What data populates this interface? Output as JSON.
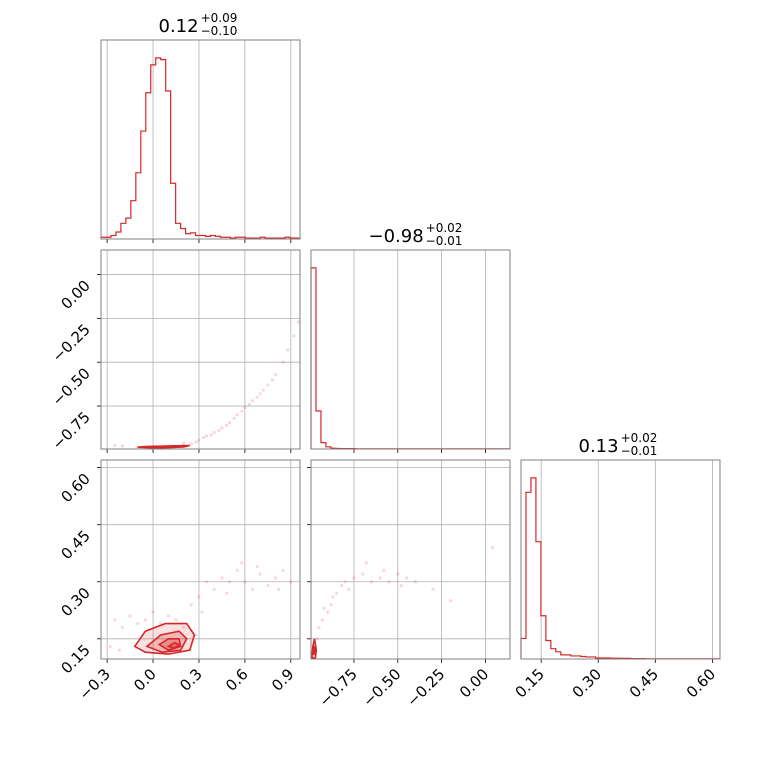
{
  "chart_data": {
    "type": "corner",
    "color": "#d62728",
    "params": [
      {
        "id": "p1",
        "range": [
          -0.34,
          0.96
        ],
        "ticks": [
          -0.3,
          0.0,
          0.3,
          0.6,
          0.9
        ],
        "tick_labels": [
          "−0.3",
          "0.0",
          "0.3",
          "0.6",
          "0.9"
        ],
        "title": {
          "base": "0.12",
          "plus": "+0.09",
          "minus": "−0.10"
        },
        "hist": [
          0.01,
          0.01,
          0.02,
          0.04,
          0.09,
          0.12,
          0.22,
          0.38,
          0.62,
          0.84,
          1.0,
          1.04,
          1.03,
          0.85,
          0.32,
          0.09,
          0.06,
          0.03,
          0.035,
          0.02,
          0.02,
          0.015,
          0.02,
          0.015,
          0.01,
          0.01,
          0.005,
          0.01,
          0.01,
          0.005,
          0.005,
          0.005,
          0.01,
          0.005,
          0.005,
          0.005,
          0.005,
          0.01,
          0.005,
          0.005
        ]
      },
      {
        "id": "p2",
        "range": [
          -0.995,
          0.14
        ],
        "ticks": [
          -0.75,
          -0.5,
          -0.25,
          0.0
        ],
        "tick_labels": [
          "−0.75",
          "−0.50",
          "−0.25",
          "0.00"
        ],
        "title": {
          "base": "−0.98",
          "plus": "+0.02",
          "minus": "−0.01"
        },
        "hist": [
          1.0,
          0.21,
          0.035,
          0.012,
          0.004,
          0.003,
          0.002,
          0.002,
          0.002,
          0.001,
          0.001,
          0.001,
          0.001,
          0.001,
          0.001,
          0.001,
          0.001,
          0.001,
          0.001,
          0.001,
          0.001,
          0.001,
          0.001,
          0.001,
          0.001,
          0.001,
          0.001,
          0.001,
          0.001,
          0.001,
          0.001,
          0.001,
          0.001,
          0.001,
          0.001,
          0.001,
          0.001,
          0.001,
          0.001,
          0.001
        ]
      },
      {
        "id": "p3",
        "range": [
          0.097,
          0.62
        ],
        "ticks": [
          0.15,
          0.3,
          0.45,
          0.6
        ],
        "tick_labels": [
          "0.15",
          "0.30",
          "0.45",
          "0.60"
        ],
        "title": {
          "base": "0.13",
          "plus": "+0.02",
          "minus": "−0.01"
        },
        "hist": [
          0.1,
          0.81,
          0.88,
          0.57,
          0.21,
          0.09,
          0.05,
          0.035,
          0.02,
          0.02,
          0.015,
          0.015,
          0.012,
          0.01,
          0.01,
          0.005,
          0.005,
          0.005,
          0.004,
          0.004,
          0.003,
          0.003,
          0.002,
          0.002,
          0.002,
          0.001,
          0.001,
          0.001,
          0.001,
          0.001,
          0.001,
          0.001,
          0.001,
          0.001,
          0.001,
          0.001,
          0.001,
          0.001,
          0.001,
          0.001
        ]
      }
    ],
    "pairs": [
      {
        "x": "p1",
        "y": "p2",
        "samples": [
          [
            -0.25,
            -0.975
          ],
          [
            -0.2,
            -0.978
          ],
          [
            -0.1,
            -0.984
          ],
          [
            0.0,
            -0.982
          ],
          [
            0.1,
            -0.98
          ],
          [
            0.2,
            -0.975
          ],
          [
            0.25,
            -0.965
          ],
          [
            0.3,
            -0.945
          ],
          [
            0.35,
            -0.92
          ],
          [
            0.4,
            -0.9
          ],
          [
            0.45,
            -0.875
          ],
          [
            0.5,
            -0.845
          ],
          [
            0.55,
            -0.8
          ],
          [
            0.6,
            -0.76
          ],
          [
            0.65,
            -0.72
          ],
          [
            0.7,
            -0.68
          ],
          [
            0.75,
            -0.63
          ],
          [
            0.8,
            -0.57
          ],
          [
            0.85,
            -0.5
          ],
          [
            0.88,
            -0.43
          ],
          [
            0.92,
            -0.35
          ],
          [
            0.95,
            -0.27
          ],
          [
            0.2,
            -0.96
          ],
          [
            0.28,
            -0.955
          ],
          [
            0.33,
            -0.93
          ],
          [
            0.38,
            -0.915
          ],
          [
            0.43,
            -0.89
          ],
          [
            0.48,
            -0.86
          ],
          [
            0.53,
            -0.82
          ],
          [
            0.58,
            -0.78
          ],
          [
            0.63,
            -0.74
          ],
          [
            0.68,
            -0.7
          ],
          [
            0.72,
            -0.66
          ],
          [
            0.78,
            -0.6
          ]
        ],
        "contours": [
          [
            [
              -0.1,
              -0.985
            ],
            [
              0.0,
              -0.988
            ],
            [
              0.1,
              -0.987
            ],
            [
              0.2,
              -0.983
            ],
            [
              0.24,
              -0.975
            ],
            [
              0.15,
              -0.977
            ],
            [
              0.05,
              -0.979
            ],
            [
              -0.05,
              -0.981
            ],
            [
              -0.1,
              -0.985
            ]
          ],
          [
            [
              -0.04,
              -0.984
            ],
            [
              0.05,
              -0.986
            ],
            [
              0.15,
              -0.985
            ],
            [
              0.19,
              -0.981
            ],
            [
              0.1,
              -0.981
            ],
            [
              0.0,
              -0.982
            ],
            [
              -0.04,
              -0.984
            ]
          ]
        ]
      },
      {
        "x": "p1",
        "y": "p3",
        "samples": [
          [
            -0.25,
            0.2
          ],
          [
            -0.2,
            0.18
          ],
          [
            -0.15,
            0.21
          ],
          [
            -0.1,
            0.19
          ],
          [
            -0.05,
            0.2
          ],
          [
            0.0,
            0.22
          ],
          [
            0.05,
            0.19
          ],
          [
            0.1,
            0.21
          ],
          [
            0.15,
            0.2
          ],
          [
            0.2,
            0.18
          ],
          [
            0.25,
            0.24
          ],
          [
            0.3,
            0.26
          ],
          [
            0.35,
            0.3
          ],
          [
            0.4,
            0.28
          ],
          [
            0.45,
            0.31
          ],
          [
            0.5,
            0.3
          ],
          [
            0.55,
            0.33
          ],
          [
            0.6,
            0.3
          ],
          [
            0.65,
            0.28
          ],
          [
            0.7,
            0.32
          ],
          [
            0.75,
            0.29
          ],
          [
            0.8,
            0.31
          ],
          [
            0.85,
            0.33
          ],
          [
            0.9,
            0.3
          ],
          [
            -0.28,
            0.13
          ],
          [
            -0.22,
            0.12
          ],
          [
            0.28,
            0.16
          ],
          [
            0.32,
            0.22
          ],
          [
            0.48,
            0.27
          ],
          [
            0.58,
            0.35
          ],
          [
            0.68,
            0.34
          ],
          [
            0.82,
            0.28
          ]
        ],
        "contours": [
          [
            [
              -0.12,
              0.13
            ],
            [
              -0.05,
              0.17
            ],
            [
              0.08,
              0.19
            ],
            [
              0.22,
              0.19
            ],
            [
              0.27,
              0.16
            ],
            [
              0.24,
              0.12
            ],
            [
              0.1,
              0.11
            ],
            [
              -0.05,
              0.115
            ],
            [
              -0.12,
              0.13
            ]
          ],
          [
            [
              -0.04,
              0.13
            ],
            [
              0.05,
              0.16
            ],
            [
              0.17,
              0.17
            ],
            [
              0.22,
              0.15
            ],
            [
              0.18,
              0.12
            ],
            [
              0.06,
              0.115
            ],
            [
              -0.04,
              0.13
            ]
          ],
          [
            [
              0.04,
              0.135
            ],
            [
              0.1,
              0.15
            ],
            [
              0.17,
              0.15
            ],
            [
              0.18,
              0.13
            ],
            [
              0.1,
              0.12
            ],
            [
              0.04,
              0.135
            ]
          ],
          [
            [
              0.1,
              0.13
            ],
            [
              0.14,
              0.14
            ],
            [
              0.17,
              0.135
            ],
            [
              0.14,
              0.125
            ],
            [
              0.1,
              0.13
            ]
          ]
        ]
      },
      {
        "x": "p2",
        "y": "p3",
        "samples": [
          [
            -0.98,
            0.11
          ],
          [
            -0.97,
            0.13
          ],
          [
            -0.96,
            0.15
          ],
          [
            -0.95,
            0.18
          ],
          [
            -0.93,
            0.2
          ],
          [
            -0.9,
            0.22
          ],
          [
            -0.88,
            0.24
          ],
          [
            -0.85,
            0.27
          ],
          [
            -0.82,
            0.29
          ],
          [
            -0.8,
            0.3
          ],
          [
            -0.75,
            0.31
          ],
          [
            -0.7,
            0.32
          ],
          [
            -0.65,
            0.3
          ],
          [
            -0.6,
            0.31
          ],
          [
            -0.55,
            0.3
          ],
          [
            -0.5,
            0.32
          ],
          [
            -0.45,
            0.31
          ],
          [
            -0.4,
            0.3
          ],
          [
            -0.3,
            0.28
          ],
          [
            -0.2,
            0.25
          ],
          [
            0.04,
            0.39
          ],
          [
            -0.87,
            0.26
          ],
          [
            -0.92,
            0.23
          ],
          [
            -0.78,
            0.28
          ],
          [
            -0.68,
            0.35
          ],
          [
            -0.58,
            0.33
          ],
          [
            -0.48,
            0.29
          ]
        ],
        "contours": [
          [
            [
              -0.99,
              0.1
            ],
            [
              -0.985,
              0.13
            ],
            [
              -0.975,
              0.15
            ],
            [
              -0.965,
              0.12
            ],
            [
              -0.97,
              0.1
            ],
            [
              -0.99,
              0.1
            ]
          ],
          [
            [
              -0.985,
              0.11
            ],
            [
              -0.98,
              0.13
            ],
            [
              -0.972,
              0.125
            ],
            [
              -0.975,
              0.11
            ],
            [
              -0.985,
              0.11
            ]
          ]
        ]
      }
    ]
  }
}
